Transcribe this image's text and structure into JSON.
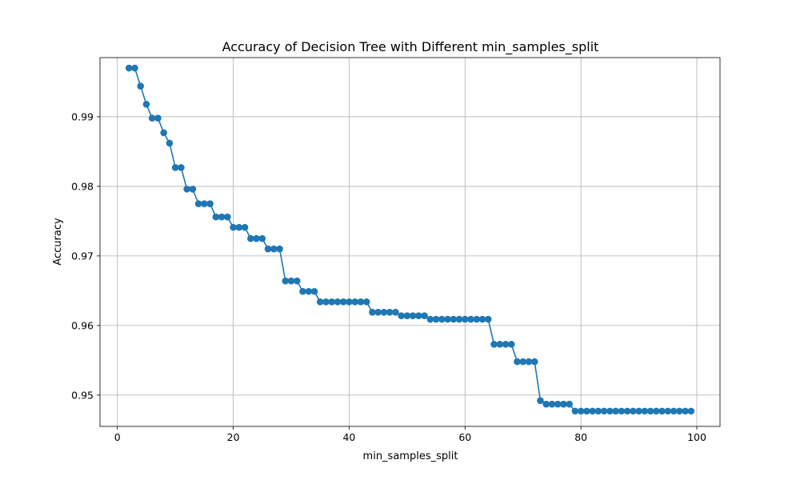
{
  "chart_data": {
    "type": "line",
    "title": "Accuracy of Decision Tree with Different min_samples_split",
    "xlabel": "min_samples_split",
    "ylabel": "Accuracy",
    "xlim": [
      -3,
      104
    ],
    "ylim": [
      0.9455,
      0.9985
    ],
    "xticks": [
      0,
      20,
      40,
      60,
      80,
      100
    ],
    "yticks": [
      0.95,
      0.96,
      0.97,
      0.98,
      0.99
    ],
    "ytick_labels": [
      "0.95",
      "0.96",
      "0.97",
      "0.98",
      "0.99"
    ],
    "grid": true,
    "color": "#1f77b4",
    "marker": "circle",
    "x": [
      2,
      3,
      4,
      5,
      6,
      7,
      8,
      9,
      10,
      11,
      12,
      13,
      14,
      15,
      16,
      17,
      18,
      19,
      20,
      21,
      22,
      23,
      24,
      25,
      26,
      27,
      28,
      29,
      30,
      31,
      32,
      33,
      34,
      35,
      36,
      37,
      38,
      39,
      40,
      41,
      42,
      43,
      44,
      45,
      46,
      47,
      48,
      49,
      50,
      51,
      52,
      53,
      54,
      55,
      56,
      57,
      58,
      59,
      60,
      61,
      62,
      63,
      64,
      65,
      66,
      67,
      68,
      69,
      70,
      71,
      72,
      73,
      74,
      75,
      76,
      77,
      78,
      79,
      80,
      81,
      82,
      83,
      84,
      85,
      86,
      87,
      88,
      89,
      90,
      91,
      92,
      93,
      94,
      95,
      96,
      97,
      98,
      99
    ],
    "y": [
      0.997,
      0.997,
      0.9944,
      0.9918,
      0.9898,
      0.9898,
      0.9877,
      0.9862,
      0.9827,
      0.9827,
      0.9796,
      0.9796,
      0.9775,
      0.9775,
      0.9775,
      0.9756,
      0.9756,
      0.9756,
      0.9741,
      0.9741,
      0.9741,
      0.9725,
      0.9725,
      0.9725,
      0.971,
      0.971,
      0.971,
      0.9664,
      0.9664,
      0.9664,
      0.9649,
      0.9649,
      0.9649,
      0.9634,
      0.9634,
      0.9634,
      0.9634,
      0.9634,
      0.9634,
      0.9634,
      0.9634,
      0.9634,
      0.9619,
      0.9619,
      0.9619,
      0.9619,
      0.9619,
      0.9614,
      0.9614,
      0.9614,
      0.9614,
      0.9614,
      0.9609,
      0.9609,
      0.9609,
      0.9609,
      0.9609,
      0.9609,
      0.9609,
      0.9609,
      0.9609,
      0.9609,
      0.9609,
      0.9573,
      0.9573,
      0.9573,
      0.9573,
      0.9548,
      0.9548,
      0.9548,
      0.9548,
      0.9492,
      0.9487,
      0.9487,
      0.9487,
      0.9487,
      0.9487,
      0.9477,
      0.9477,
      0.9477,
      0.9477,
      0.9477,
      0.9477,
      0.9477,
      0.9477,
      0.9477,
      0.9477,
      0.9477,
      0.9477,
      0.9477,
      0.9477,
      0.9477,
      0.9477,
      0.9477,
      0.9477,
      0.9477,
      0.9477,
      0.9477
    ]
  }
}
